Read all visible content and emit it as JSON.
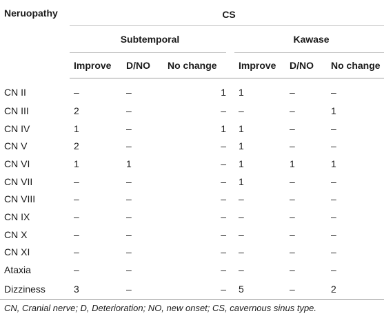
{
  "table": {
    "row_header_label": "Neruopathy",
    "group_label": "CS",
    "subgroups": [
      "Subtemporal",
      "Kawase"
    ],
    "columns": [
      "Improve",
      "D/NO",
      "No change",
      "Improve",
      "D/NO",
      "No change"
    ],
    "rows": [
      {
        "label": "CN II",
        "cells": [
          "–",
          "–",
          "1",
          "1",
          "–",
          "–"
        ]
      },
      {
        "label": "CN III",
        "cells": [
          "2",
          "–",
          "–",
          "–",
          "–",
          "1"
        ]
      },
      {
        "label": "CN IV",
        "cells": [
          "1",
          "–",
          "1",
          "1",
          "–",
          "–"
        ]
      },
      {
        "label": "CN V",
        "cells": [
          "2",
          "–",
          "–",
          "1",
          "–",
          "–"
        ]
      },
      {
        "label": "CN VI",
        "cells": [
          "1",
          "1",
          "–",
          "1",
          "1",
          "1"
        ]
      },
      {
        "label": "CN VII",
        "cells": [
          "–",
          "–",
          "–",
          "1",
          "–",
          "–"
        ]
      },
      {
        "label": "CN VIII",
        "cells": [
          "–",
          "–",
          "–",
          "–",
          "–",
          "–"
        ]
      },
      {
        "label": "CN IX",
        "cells": [
          "–",
          "–",
          "–",
          "–",
          "–",
          "–"
        ]
      },
      {
        "label": "CN X",
        "cells": [
          "–",
          "–",
          "–",
          "–",
          "–",
          "–"
        ]
      },
      {
        "label": "CN XI",
        "cells": [
          "–",
          "–",
          "–",
          "–",
          "–",
          "–"
        ]
      },
      {
        "label": "Ataxia",
        "cells": [
          "–",
          "–",
          "–",
          "–",
          "–",
          "–"
        ]
      },
      {
        "label": "Dizziness",
        "cells": [
          "3",
          "–",
          "–",
          "5",
          "–",
          "2"
        ]
      }
    ]
  },
  "footnote": "CN, Cranial nerve; D, Deterioration; NO, new onset; CS, cavernous sinus type."
}
